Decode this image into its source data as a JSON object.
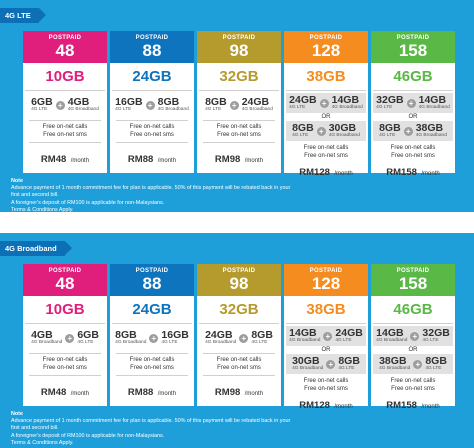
{
  "colors": {
    "page_bg": "#ffffff",
    "panel_bg": "#1e9fd9",
    "tag_bg": "#0d6fb5",
    "plan_48": "#e01e7c",
    "plan_88": "#0e74bd",
    "plan_98": "#b59b2e",
    "plan_128": "#f58c1f",
    "plan_158": "#5ab846",
    "combo_box": "#e1e1e1",
    "plus_circle": "#9d9d9d"
  },
  "lte": {
    "tag": "4G LTE",
    "plans": [
      {
        "label": "POSTPAID",
        "number": "48",
        "gb": "10GB",
        "color": "#e01e7c",
        "combos": [
          [
            {
              "v": "6GB",
              "t": "4G LTE"
            },
            {
              "v": "4GB",
              "t": "4G Broadband"
            }
          ]
        ],
        "free1": "Free on-net calls",
        "free2": "Free on-net sms",
        "price": "RM48",
        "per": "/month"
      },
      {
        "label": "POSTPAID",
        "number": "88",
        "gb": "24GB",
        "color": "#0e74bd",
        "combos": [
          [
            {
              "v": "16GB",
              "t": "4G LTE"
            },
            {
              "v": "8GB",
              "t": "4G Broadband"
            }
          ]
        ],
        "free1": "Free on-net calls",
        "free2": "Free on-net sms",
        "price": "RM88",
        "per": "/month"
      },
      {
        "label": "POSTPAID",
        "number": "98",
        "gb": "32GB",
        "color": "#b59b2e",
        "combos": [
          [
            {
              "v": "8GB",
              "t": "4G LTE"
            },
            {
              "v": "24GB",
              "t": "4G Broadband"
            }
          ]
        ],
        "free1": "Free on-net calls",
        "free2": "Free on-net sms",
        "price": "RM98",
        "per": "/month"
      },
      {
        "label": "POSTPAID",
        "number": "128",
        "gb": "38GB",
        "color": "#f58c1f",
        "combos": [
          [
            {
              "v": "24GB",
              "t": "4G LTE"
            },
            {
              "v": "14GB",
              "t": "4G Broadband"
            }
          ],
          [
            {
              "v": "8GB",
              "t": "4G LTE"
            },
            {
              "v": "30GB",
              "t": "4G Broadband"
            }
          ]
        ],
        "or": "OR",
        "free1": "Free on-net calls",
        "free2": "Free on-net sms",
        "price": "RM128",
        "per": "/month"
      },
      {
        "label": "POSTPAID",
        "number": "158",
        "gb": "46GB",
        "color": "#5ab846",
        "combos": [
          [
            {
              "v": "32GB",
              "t": "4G LTE"
            },
            {
              "v": "14GB",
              "t": "4G Broadband"
            }
          ],
          [
            {
              "v": "8GB",
              "t": "4G LTE"
            },
            {
              "v": "38GB",
              "t": "4G Broadband"
            }
          ]
        ],
        "or": "OR",
        "free1": "Free on-net calls",
        "free2": "Free on-net sms",
        "price": "RM158",
        "per": "/month"
      }
    ],
    "note_head": "Note",
    "note_lines": [
      "Advance payment of 1 month commitment fee for plan is applicable. 50% of this payment will be rebated back in your",
      "first and second bill.",
      "A foreigner's deposit of RM100 is applicable for non-Malaysians.",
      "Terms & Conditions Apply."
    ]
  },
  "broadband": {
    "tag": "4G Broadband",
    "plans": [
      {
        "label": "POSTPAID",
        "number": "48",
        "gb": "10GB",
        "color": "#e01e7c",
        "combos": [
          [
            {
              "v": "4GB",
              "t": "4G Broadband"
            },
            {
              "v": "6GB",
              "t": "4G LTE"
            }
          ]
        ],
        "free1": "Free on-net calls",
        "free2": "Free on-net sms",
        "price": "RM48",
        "per": "/month"
      },
      {
        "label": "POSTPAID",
        "number": "88",
        "gb": "24GB",
        "color": "#0e74bd",
        "combos": [
          [
            {
              "v": "8GB",
              "t": "4G Broadband"
            },
            {
              "v": "16GB",
              "t": "4G LTE"
            }
          ]
        ],
        "free1": "Free on-net calls",
        "free2": "Free on-net sms",
        "price": "RM88",
        "per": "/month"
      },
      {
        "label": "POSTPAID",
        "number": "98",
        "gb": "32GB",
        "color": "#b59b2e",
        "combos": [
          [
            {
              "v": "24GB",
              "t": "4G Broadband"
            },
            {
              "v": "8GB",
              "t": "4G LTE"
            }
          ]
        ],
        "free1": "Free on-net calls",
        "free2": "Free on-net sms",
        "price": "RM98",
        "per": "/month"
      },
      {
        "label": "POSTPAID",
        "number": "128",
        "gb": "38GB",
        "color": "#f58c1f",
        "combos": [
          [
            {
              "v": "14GB",
              "t": "4G Broadband"
            },
            {
              "v": "24GB",
              "t": "4G LTE"
            }
          ],
          [
            {
              "v": "30GB",
              "t": "4G Broadband"
            },
            {
              "v": "8GB",
              "t": "4G LTE"
            }
          ]
        ],
        "or": "OR",
        "free1": "Free on-net calls",
        "free2": "Free on-net sms",
        "price": "RM128",
        "per": "/month"
      },
      {
        "label": "POSTPAID",
        "number": "158",
        "gb": "46GB",
        "color": "#5ab846",
        "combos": [
          [
            {
              "v": "14GB",
              "t": "4G Broadband"
            },
            {
              "v": "32GB",
              "t": "4G LTE"
            }
          ],
          [
            {
              "v": "38GB",
              "t": "4G Broadband"
            },
            {
              "v": "8GB",
              "t": "4G LTE"
            }
          ]
        ],
        "or": "OR",
        "free1": "Free on-net calls",
        "free2": "Free on-net sms",
        "price": "RM158",
        "per": "/month"
      }
    ],
    "note_head": "Note",
    "note_lines": [
      "Advance payment of 1 month commitment fee for plan is applicable. 50% of this payment will be rebated back in your",
      "first and second bill.",
      "A foreigner's deposit of RM100 is applicable for non-Malaysians.",
      "Terms & Conditions Apply."
    ]
  }
}
